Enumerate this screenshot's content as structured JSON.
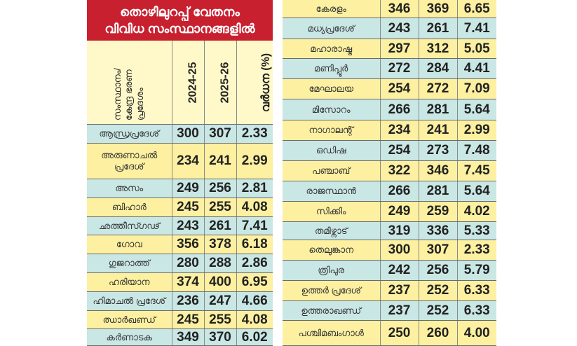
{
  "chart_data": {
    "type": "table",
    "title_line1": "തൊഴിലുറപ്പ് വേതനം",
    "title_line2": "വിവിധ സംസ്ഥാനങ്ങളിൽ",
    "columns": [
      "സംസ്ഥാനം/ കേന്ദ്ര ഭരണ പ്രദേശം",
      "2024-25",
      "2025-26",
      "വർധന (%)"
    ],
    "colors": {
      "title_bg": "#c8202f",
      "row_yellow": "#fdf0a0",
      "row_blue": "#c9e7e5"
    },
    "rows": [
      [
        "ആന്ധ്രപ്രദേശ്",
        "300",
        "307",
        "2.33"
      ],
      [
        "അരുണാചൽ പ്രദേശ്",
        "234",
        "241",
        "2.99"
      ],
      [
        "അസം",
        "249",
        "256",
        "2.81"
      ],
      [
        "ബിഹാർ",
        "245",
        "255",
        "4.08"
      ],
      [
        "ഛത്തീസ്ഗഢ്",
        "243",
        "261",
        "7.41"
      ],
      [
        "ഗോവ",
        "356",
        "378",
        "6.18"
      ],
      [
        "ഗുജറാത്ത്",
        "280",
        "288",
        "2.86"
      ],
      [
        "ഹരിയാന",
        "374",
        "400",
        "6.95"
      ],
      [
        "ഹിമാചൽ പ്രദേശ്",
        "236",
        "247",
        "4.66"
      ],
      [
        "ഝാർഖണ്ഡ്",
        "245",
        "255",
        "4.08"
      ],
      [
        "കർണാടക",
        "349",
        "370",
        "6.02"
      ],
      [
        "കേരളം",
        "346",
        "369",
        "6.65"
      ],
      [
        "മധ്യപ്രദേശ്",
        "243",
        "261",
        "7.41"
      ],
      [
        "മഹാരാഷ്ട്ര",
        "297",
        "312",
        "5.05"
      ],
      [
        "മണിപ്പൂർ",
        "272",
        "284",
        "4.41"
      ],
      [
        "മേഘാലയ",
        "254",
        "272",
        "7.09"
      ],
      [
        "മിസോറം",
        "266",
        "281",
        "5.64"
      ],
      [
        "നാഗാലന്റ്",
        "234",
        "241",
        "2.99"
      ],
      [
        "ഒഡിഷ",
        "254",
        "273",
        "7.48"
      ],
      [
        "പഞ്ചാബ്",
        "322",
        "346",
        "7.45"
      ],
      [
        "രാജസ്ഥാൻ",
        "266",
        "281",
        "5.64"
      ],
      [
        "സിക്കിം",
        "249",
        "259",
        "4.02"
      ],
      [
        "തമിഴ്നാട്",
        "319",
        "336",
        "5.33"
      ],
      [
        "തെലുങ്കാന",
        "300",
        "307",
        "2.33"
      ],
      [
        "ത്രിപുര",
        "242",
        "256",
        "5.79"
      ],
      [
        "ഉത്തർ പ്രദേശ്",
        "237",
        "252",
        "6.33"
      ],
      [
        "ഉത്തരാഖണ്ഡ്",
        "237",
        "252",
        "6.33"
      ],
      [
        "പശ്ചിമബംഗാൾ",
        "250",
        "260",
        "4.00"
      ]
    ]
  }
}
